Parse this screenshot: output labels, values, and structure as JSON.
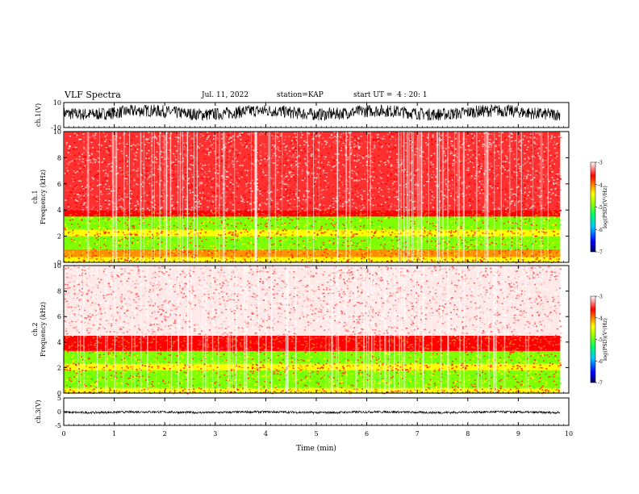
{
  "header": {
    "title": "VLF Spectra",
    "date": "Jul. 11, 2022",
    "station": "station=KAP",
    "start": "start UT =  4 : 20: 1"
  },
  "chart_data": [
    {
      "type": "line",
      "name": "ch1-waveform",
      "ylabel": "ch.1(V)",
      "ylim": [
        -10,
        10
      ],
      "yticks": [
        "10",
        "-10"
      ],
      "xlim": [
        0,
        10
      ],
      "data_extent_min": 9.83,
      "approx_range": [
        -3,
        7
      ],
      "color": "#000000"
    },
    {
      "type": "heatmap",
      "name": "ch1-spectrogram",
      "ylabel_top": "ch.1",
      "ylabel": "Frequency (kHz)",
      "ylim": [
        0,
        10
      ],
      "yticks": [
        "0",
        "2",
        "4",
        "6",
        "8",
        "10"
      ],
      "xlim": [
        0,
        10
      ],
      "data_extent_min": 9.83,
      "colorbar": {
        "label": "log(PSD)(V²/Hz)",
        "range": [
          -7,
          -3
        ],
        "ticks": [
          "-3",
          "-4",
          "-5",
          "-6",
          "-7"
        ],
        "colors": [
          "#000080",
          "#0000ff",
          "#00c0ff",
          "#00ff80",
          "#80ff00",
          "#ffff00",
          "#ff8000",
          "#ff0000",
          "#ff8080",
          "#ffffff"
        ]
      },
      "bands_khz": [
        {
          "from": 0.0,
          "to": 0.4,
          "level": "yellow"
        },
        {
          "from": 0.4,
          "to": 1.0,
          "level": "orange"
        },
        {
          "from": 1.0,
          "to": 2.0,
          "level": "green"
        },
        {
          "from": 2.0,
          "to": 2.5,
          "level": "yellow"
        },
        {
          "from": 2.5,
          "to": 3.5,
          "level": "green"
        },
        {
          "from": 3.5,
          "to": 4.0,
          "level": "red"
        },
        {
          "from": 4.0,
          "to": 10.0,
          "level": "red-light"
        }
      ]
    },
    {
      "type": "heatmap",
      "name": "ch2-spectrogram",
      "ylabel_top": "ch.2",
      "ylabel": "Frequency (kHz)",
      "ylim": [
        0,
        10
      ],
      "yticks": [
        "0",
        "2",
        "4",
        "6",
        "8",
        "10"
      ],
      "xlim": [
        0,
        10
      ],
      "data_extent_min": 9.83,
      "colorbar": {
        "label": "log(PSD)(V²/Hz)",
        "range": [
          -7,
          -3
        ],
        "ticks": [
          "-3",
          "-4",
          "-5",
          "-6",
          "-7"
        ]
      },
      "bands_khz": [
        {
          "from": 0.0,
          "to": 0.4,
          "level": "yellow"
        },
        {
          "from": 0.4,
          "to": 1.0,
          "level": "green"
        },
        {
          "from": 1.0,
          "to": 1.8,
          "level": "green"
        },
        {
          "from": 1.8,
          "to": 2.3,
          "level": "yellow"
        },
        {
          "from": 2.3,
          "to": 3.3,
          "level": "green"
        },
        {
          "from": 3.3,
          "to": 4.5,
          "level": "red"
        },
        {
          "from": 4.5,
          "to": 10.0,
          "level": "white"
        }
      ]
    },
    {
      "type": "line",
      "name": "ch3-waveform",
      "ylabel": "ch.3(V)",
      "ylim": [
        -5,
        5
      ],
      "yticks": [
        "5",
        "0",
        "-5"
      ],
      "xlim": [
        0,
        10
      ],
      "data_extent_min": 9.83,
      "approx_range": [
        -0.6,
        0.2
      ],
      "color": "#000000"
    }
  ],
  "xaxis": {
    "label": "Time (min)",
    "ticks": [
      "0",
      "1",
      "2",
      "3",
      "4",
      "5",
      "6",
      "7",
      "8",
      "9",
      "10"
    ]
  }
}
